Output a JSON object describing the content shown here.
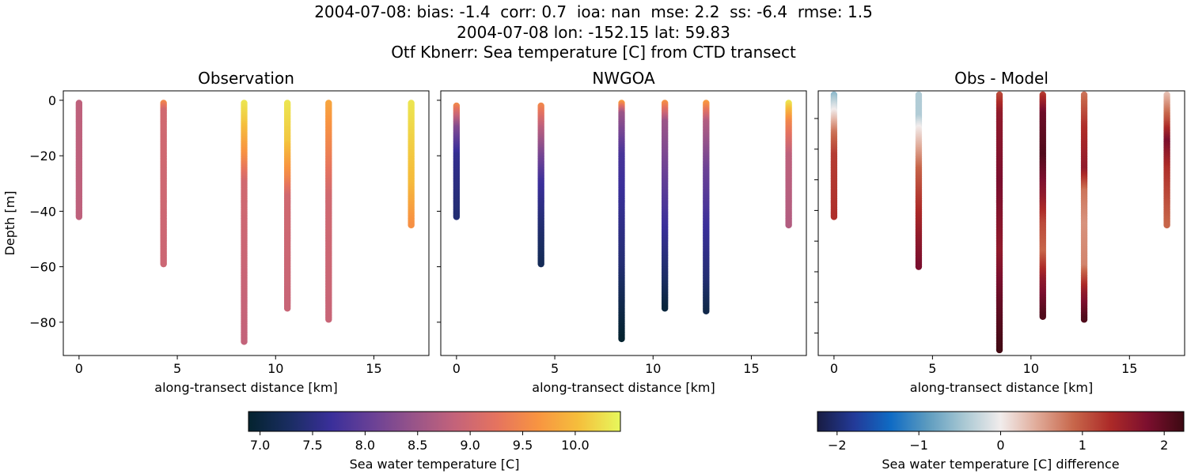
{
  "title_lines": [
    "2004-07-08: bias: -1.4  corr: 0.7  ioa: nan  mse: 2.2  ss: -6.4  rmse: 1.5",
    "2004-07-08 lon: -152.15 lat: 59.83",
    "Otf Kbnerr: Sea temperature [C] from CTD transect"
  ],
  "chart_data": [
    {
      "type": "scatter",
      "title": "Observation",
      "xlabel": "along-transect distance [km]",
      "ylabel": "Depth [m]",
      "xlim": [
        -0.8,
        17.8
      ],
      "ylim": [
        -92,
        3.4
      ],
      "xticks": [
        0,
        5,
        10,
        15
      ],
      "yticks": [
        0,
        -20,
        -40,
        -60,
        -80
      ],
      "colormap": "thermal",
      "clim": [
        6.89,
        10.43
      ],
      "profiles": [
        {
          "x": 0,
          "depths": [
            -1,
            -42
          ],
          "points": [
            [
              -1,
              8.8
            ],
            [
              -42,
              8.8
            ]
          ]
        },
        {
          "x": 4.3,
          "depths": [
            -1,
            -59
          ],
          "points": [
            [
              -1,
              9.5
            ],
            [
              -4,
              9.0
            ],
            [
              -59,
              8.95
            ]
          ]
        },
        {
          "x": 8.4,
          "depths": [
            -1,
            -87
          ],
          "points": [
            [
              -1,
              10.3
            ],
            [
              -8,
              10.1
            ],
            [
              -20,
              9.6
            ],
            [
              -30,
              9.0
            ],
            [
              -87,
              8.85
            ]
          ]
        },
        {
          "x": 10.6,
          "depths": [
            -1,
            -75
          ],
          "points": [
            [
              -1,
              10.3
            ],
            [
              -15,
              10.1
            ],
            [
              -28,
              9.5
            ],
            [
              -35,
              9.0
            ],
            [
              -75,
              8.9
            ]
          ]
        },
        {
          "x": 12.7,
          "depths": [
            -1,
            -79
          ],
          "points": [
            [
              -1,
              9.8
            ],
            [
              -20,
              9.4
            ],
            [
              -35,
              9.0
            ],
            [
              -79,
              8.9
            ]
          ]
        },
        {
          "x": 16.9,
          "depths": [
            -1,
            -45
          ],
          "points": [
            [
              -1,
              10.3
            ],
            [
              -30,
              10.0
            ],
            [
              -45,
              9.6
            ]
          ]
        }
      ]
    },
    {
      "type": "scatter",
      "title": "NWGOA",
      "xlabel": "along-transect distance [km]",
      "xlim": [
        -0.8,
        17.8
      ],
      "ylim": [
        -92,
        3.4
      ],
      "xticks": [
        0,
        5,
        10,
        15
      ],
      "yticks": [
        0,
        -20,
        -40,
        -60,
        -80
      ],
      "colormap": "thermal",
      "clim": [
        6.89,
        10.43
      ],
      "profiles": [
        {
          "x": 0,
          "points": [
            [
              -2,
              9.5
            ],
            [
              -10,
              8.3
            ],
            [
              -20,
              7.6
            ],
            [
              -42,
              7.4
            ]
          ]
        },
        {
          "x": 4.3,
          "points": [
            [
              -2,
              9.5
            ],
            [
              -10,
              8.8
            ],
            [
              -20,
              8.2
            ],
            [
              -30,
              7.7
            ],
            [
              -45,
              7.4
            ],
            [
              -59,
              7.2
            ]
          ]
        },
        {
          "x": 8.4,
          "points": [
            [
              -1,
              9.7
            ],
            [
              -5,
              8.5
            ],
            [
              -20,
              7.8
            ],
            [
              -40,
              7.6
            ],
            [
              -60,
              7.4
            ],
            [
              -75,
              7.1
            ],
            [
              -86,
              6.9
            ]
          ]
        },
        {
          "x": 10.6,
          "points": [
            [
              -1,
              9.6
            ],
            [
              -8,
              8.5
            ],
            [
              -30,
              8.0
            ],
            [
              -50,
              7.6
            ],
            [
              -65,
              7.3
            ],
            [
              -75,
              7.0
            ]
          ]
        },
        {
          "x": 12.7,
          "points": [
            [
              -1,
              9.7
            ],
            [
              -8,
              8.7
            ],
            [
              -25,
              8.1
            ],
            [
              -45,
              7.7
            ],
            [
              -65,
              7.4
            ],
            [
              -76,
              7.1
            ]
          ]
        },
        {
          "x": 16.9,
          "points": [
            [
              -1,
              10.3
            ],
            [
              -8,
              9.5
            ],
            [
              -20,
              8.8
            ],
            [
              -45,
              8.7
            ]
          ]
        }
      ]
    },
    {
      "type": "scatter",
      "title": "Obs - Model",
      "xlabel": "along-transect distance [km]",
      "xlim": [
        -0.8,
        17.8
      ],
      "ylim": [
        -92,
        3.4
      ],
      "xticks": [
        0,
        5,
        10,
        15
      ],
      "colormap": "balance",
      "clim": [
        -2.24,
        2.24
      ],
      "profiles": [
        {
          "x": 0,
          "points": [
            [
              2,
              -0.6
            ],
            [
              -4,
              0
            ],
            [
              -12,
              0.8
            ],
            [
              -20,
              1.2
            ],
            [
              -42,
              1.3
            ]
          ]
        },
        {
          "x": 4.3,
          "points": [
            [
              2,
              -0.4
            ],
            [
              -6,
              -0.4
            ],
            [
              -10,
              0
            ],
            [
              -25,
              0.9
            ],
            [
              -35,
              1.2
            ],
            [
              -50,
              1.6
            ],
            [
              -60,
              1.8
            ]
          ]
        },
        {
          "x": 8.4,
          "points": [
            [
              2,
              1.1
            ],
            [
              -5,
              1.6
            ],
            [
              -30,
              1.8
            ],
            [
              -55,
              1.6
            ],
            [
              -70,
              1.9
            ],
            [
              -90,
              2.2
            ]
          ]
        },
        {
          "x": 10.6,
          "points": [
            [
              2,
              1.2
            ],
            [
              -5,
              1.9
            ],
            [
              -20,
              2.1
            ],
            [
              -35,
              1.6
            ],
            [
              -45,
              1.1
            ],
            [
              -55,
              0.9
            ],
            [
              -65,
              1.6
            ],
            [
              -78,
              2.1
            ]
          ]
        },
        {
          "x": 12.7,
          "points": [
            [
              2,
              0.8
            ],
            [
              -10,
              1.3
            ],
            [
              -25,
              1.6
            ],
            [
              -33,
              0.8
            ],
            [
              -45,
              0.6
            ],
            [
              -60,
              0.7
            ],
            [
              -70,
              1.6
            ],
            [
              -79,
              2.1
            ]
          ]
        },
        {
          "x": 16.9,
          "points": [
            [
              2,
              0.3
            ],
            [
              -8,
              1.1
            ],
            [
              -15,
              1.8
            ],
            [
              -25,
              1.3
            ],
            [
              -45,
              0.9
            ]
          ]
        }
      ]
    }
  ],
  "colorbars": [
    {
      "label": "Sea water temperature [C]",
      "min": 6.89,
      "max": 10.43,
      "ticks": [
        "7.0",
        "7.5",
        "8.0",
        "8.5",
        "9.0",
        "9.5",
        "10.0"
      ],
      "colormap": "thermal"
    },
    {
      "label": "Sea water temperature [C] difference",
      "min": -2.24,
      "max": 2.24,
      "ticks": [
        "−2",
        "−1",
        "0",
        "1",
        "2"
      ],
      "colormap": "balance"
    }
  ]
}
